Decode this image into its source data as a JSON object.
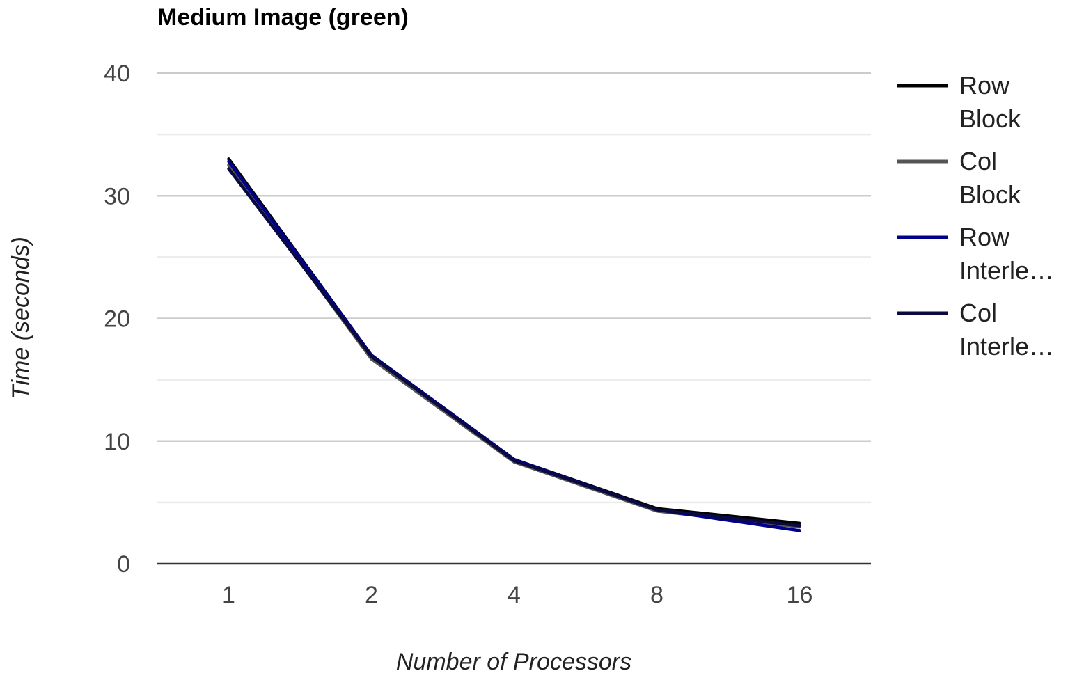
{
  "chart_data": {
    "type": "line",
    "title": "Medium Image (green)",
    "xlabel": "Number of Processors",
    "ylabel": "Time (seconds)",
    "categories": [
      "1",
      "2",
      "4",
      "8",
      "16"
    ],
    "ylim": [
      0,
      40
    ],
    "yticks": [
      "0",
      "10",
      "20",
      "30",
      "40"
    ],
    "grid": true,
    "legend_position": "right",
    "series": [
      {
        "name": "Row Block",
        "legend_lines": [
          "Row",
          "Block"
        ],
        "color": "#000000",
        "values": [
          33.0,
          17.0,
          8.5,
          4.5,
          3.3
        ]
      },
      {
        "name": "Col Block",
        "legend_lines": [
          "Col",
          "Block"
        ],
        "color": "#555555",
        "values": [
          32.5,
          16.7,
          8.3,
          4.3,
          3.0
        ]
      },
      {
        "name": "Row Interle…",
        "legend_lines": [
          "Row",
          "Interle…"
        ],
        "color": "#00008b",
        "values": [
          32.8,
          17.0,
          8.5,
          4.4,
          2.7
        ]
      },
      {
        "name": "Col Interle…",
        "legend_lines": [
          "Col",
          "Interle…"
        ],
        "color": "#0a0a40",
        "values": [
          32.2,
          16.9,
          8.4,
          4.4,
          3.1
        ]
      }
    ]
  }
}
